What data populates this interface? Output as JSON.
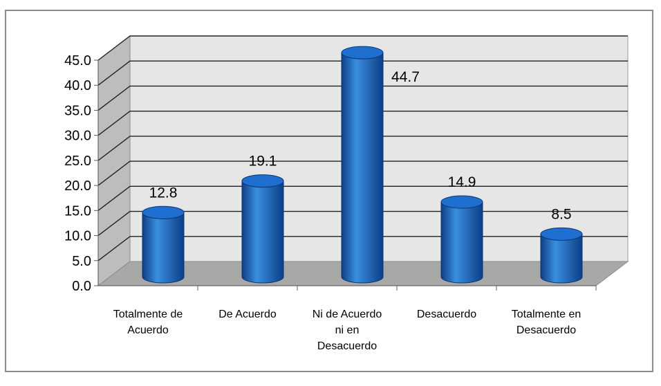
{
  "chart_data": {
    "type": "bar",
    "title": "",
    "xlabel": "",
    "ylabel": "",
    "categories": [
      [
        "Totalmente de",
        "Acuerdo"
      ],
      [
        "De Acuerdo"
      ],
      [
        "Ni de Acuerdo",
        "ni en",
        "Desacuerdo"
      ],
      [
        "Desacuerdo"
      ],
      [
        "Totalmente en",
        "Desacuerdo"
      ]
    ],
    "values": [
      12.8,
      19.1,
      44.7,
      14.9,
      8.5
    ],
    "data_labels": [
      "12.8",
      "19.1",
      "44.7",
      "14.9",
      "8.5"
    ],
    "ylim": [
      0,
      45
    ],
    "y_ticks": [
      0,
      5,
      10,
      15,
      20,
      25,
      30,
      35,
      40,
      45
    ],
    "y_tick_labels": [
      "0.0",
      "5.0",
      "10.0",
      "15.0",
      "20.0",
      "25.0",
      "30.0",
      "35.0",
      "40.0",
      "45.0"
    ],
    "grid": true,
    "style": "3d-cylinder",
    "colors": {
      "bar": "#1565c0",
      "bar_light": "#3b8ee0",
      "bar_dark": "#0b3f86",
      "wall": "#e6e6e6",
      "side_wall": "#bdbdbd",
      "floor": "#a8a8a8",
      "gridline": "#222222"
    }
  }
}
